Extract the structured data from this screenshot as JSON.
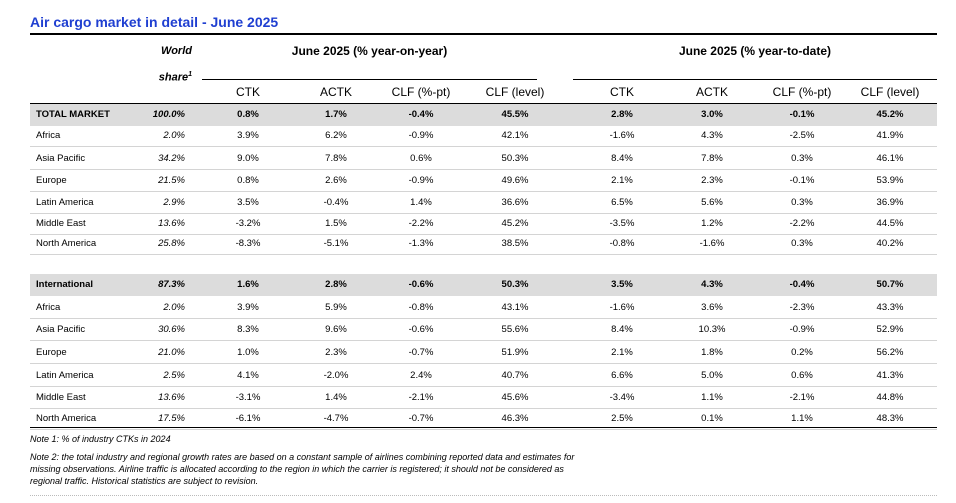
{
  "title": "Air cargo market in detail - June 2025",
  "header": {
    "world_share": "World",
    "share_label": "share",
    "share_sup": "1",
    "group_yoy": "June 2025 (% year-on-year)",
    "group_ytd": "June 2025 (% year-to-date)",
    "columns": [
      "CTK",
      "ACTK",
      "CLF (%-pt)",
      "CLF (level)",
      "CTK",
      "ACTK",
      "CLF (%-pt)",
      "CLF (level)"
    ]
  },
  "rows": [
    {
      "name": "TOTAL MARKET",
      "share": "100.0%",
      "vals": [
        "0.8%",
        "1.7%",
        "-0.4%",
        "45.5%",
        "2.8%",
        "3.0%",
        "-0.1%",
        "45.2%"
      ]
    },
    {
      "name": "Africa",
      "share": "2.0%",
      "vals": [
        "3.9%",
        "6.2%",
        "-0.9%",
        "42.1%",
        "-1.6%",
        "4.3%",
        "-2.5%",
        "41.9%"
      ]
    },
    {
      "name": "Asia Pacific",
      "share": "34.2%",
      "vals": [
        "9.0%",
        "7.8%",
        "0.6%",
        "50.3%",
        "8.4%",
        "7.8%",
        "0.3%",
        "46.1%"
      ]
    },
    {
      "name": "Europe",
      "share": "21.5%",
      "vals": [
        "0.8%",
        "2.6%",
        "-0.9%",
        "49.6%",
        "2.1%",
        "2.3%",
        "-0.1%",
        "53.9%"
      ]
    },
    {
      "name": "Latin America",
      "share": "2.9%",
      "vals": [
        "3.5%",
        "-0.4%",
        "1.4%",
        "36.6%",
        "6.5%",
        "5.6%",
        "0.3%",
        "36.9%"
      ]
    },
    {
      "name": "Middle East",
      "share": "13.6%",
      "vals": [
        "-3.2%",
        "1.5%",
        "-2.2%",
        "45.2%",
        "-3.5%",
        "1.2%",
        "-2.2%",
        "44.5%"
      ]
    },
    {
      "name": "North America",
      "share": "25.8%",
      "vals": [
        "-8.3%",
        "-5.1%",
        "-1.3%",
        "38.5%",
        "-0.8%",
        "-1.6%",
        "0.3%",
        "40.2%"
      ]
    },
    {
      "name": "International",
      "share": "87.3%",
      "vals": [
        "1.6%",
        "2.8%",
        "-0.6%",
        "50.3%",
        "3.5%",
        "4.3%",
        "-0.4%",
        "50.7%"
      ]
    },
    {
      "name": "Africa",
      "share": "2.0%",
      "vals": [
        "3.9%",
        "5.9%",
        "-0.8%",
        "43.1%",
        "-1.6%",
        "3.6%",
        "-2.3%",
        "43.3%"
      ]
    },
    {
      "name": "Asia Pacific",
      "share": "30.6%",
      "vals": [
        "8.3%",
        "9.6%",
        "-0.6%",
        "55.6%",
        "8.4%",
        "10.3%",
        "-0.9%",
        "52.9%"
      ]
    },
    {
      "name": "Europe",
      "share": "21.0%",
      "vals": [
        "1.0%",
        "2.3%",
        "-0.7%",
        "51.9%",
        "2.1%",
        "1.8%",
        "0.2%",
        "56.2%"
      ]
    },
    {
      "name": "Latin America",
      "share": "2.5%",
      "vals": [
        "4.1%",
        "-2.0%",
        "2.4%",
        "40.7%",
        "6.6%",
        "5.0%",
        "0.6%",
        "41.3%"
      ]
    },
    {
      "name": "Middle East",
      "share": "13.6%",
      "vals": [
        "-3.1%",
        "1.4%",
        "-2.1%",
        "45.6%",
        "-3.4%",
        "1.1%",
        "-2.1%",
        "44.8%"
      ]
    },
    {
      "name": "North America",
      "share": "17.5%",
      "vals": [
        "-6.1%",
        "-4.7%",
        "-0.7%",
        "46.3%",
        "2.5%",
        "0.1%",
        "1.1%",
        "48.3%"
      ]
    }
  ],
  "notes": {
    "note1": "Note 1: % of industry CTKs in 2024",
    "note2": "Note 2: the total industry and regional growth rates are based on a constant sample of airlines combining reported data and estimates for missing observations. Airline traffic is allocated according to the region in which the carrier is registered; it should not be considered as regional traffic. Historical statistics are subject to revision."
  }
}
